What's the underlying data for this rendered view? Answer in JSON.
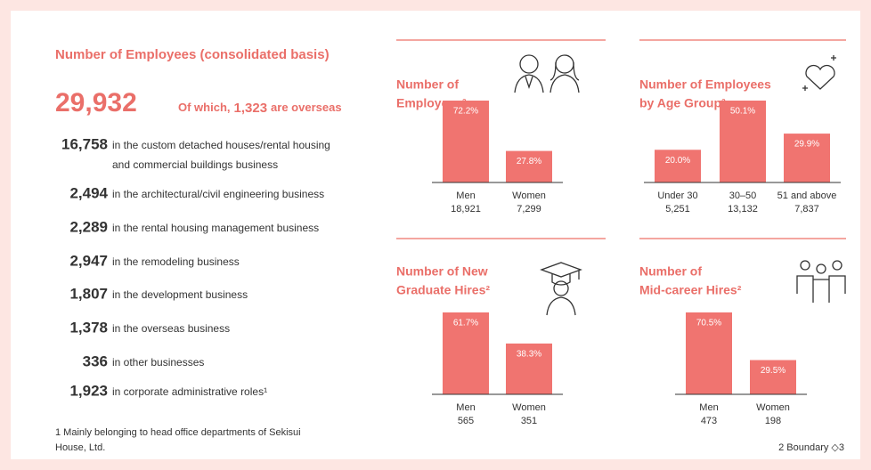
{
  "summary": {
    "title": "Number of Employees (consolidated basis)",
    "total": 29932,
    "total_label": "29,932",
    "overseas_prefix": "Of which,",
    "overseas": 1323,
    "overseas_label": "1,323",
    "overseas_suffix": "are overseas",
    "rows": [
      {
        "count": 16758,
        "label": "16,758",
        "text": [
          "in the custom detached houses/rental housing",
          "and commercial buildings business"
        ]
      },
      {
        "count": 2494,
        "label": "2,494",
        "text": [
          "in the architectural/civil engineering business"
        ]
      },
      {
        "count": 2289,
        "label": "2,289",
        "text": [
          "in the rental housing management business"
        ]
      },
      {
        "count": 2947,
        "label": "2,947",
        "text": [
          "in the remodeling business"
        ]
      },
      {
        "count": 1807,
        "label": "1,807",
        "text": [
          "in the development business"
        ]
      },
      {
        "count": 1378,
        "label": "1,378",
        "text": [
          "in the overseas business"
        ]
      },
      {
        "count": 336,
        "label": "336",
        "text": [
          "in other businesses"
        ]
      },
      {
        "count": 1923,
        "label": "1,923",
        "text": [
          "in corporate administrative roles¹"
        ]
      }
    ],
    "footnote": [
      "1 Mainly belonging to head office departments of Sekisui",
      "House, Ltd."
    ]
  },
  "footnote2": "2 Boundary ◇3",
  "chart_data": [
    {
      "type": "bar",
      "title": [
        "Number of",
        "Employees²"
      ],
      "color": "#f07470",
      "categories": [
        "Men",
        "Women"
      ],
      "values": [
        72.2,
        27.8
      ],
      "value_labels": [
        "72.2%",
        "27.8%"
      ],
      "counts": [
        18921,
        7299
      ],
      "count_labels": [
        "18,921",
        "7,299"
      ]
    },
    {
      "type": "bar",
      "title": [
        "Number of Employees",
        "by Age Group²"
      ],
      "color": "#f07470",
      "categories": [
        "Under 30",
        "30–50",
        "51 and above"
      ],
      "values": [
        20.0,
        50.1,
        29.9
      ],
      "value_labels": [
        "20.0%",
        "50.1%",
        "29.9%"
      ],
      "counts": [
        5251,
        13132,
        7837
      ],
      "count_labels": [
        "5,251",
        "13,132",
        "7,837"
      ]
    },
    {
      "type": "bar",
      "title": [
        "Number of New",
        "Graduate Hires²"
      ],
      "color": "#f07470",
      "categories": [
        "Men",
        "Women"
      ],
      "values": [
        61.7,
        38.3
      ],
      "value_labels": [
        "61.7%",
        "38.3%"
      ],
      "counts": [
        565,
        351
      ],
      "count_labels": [
        "565",
        "351"
      ]
    },
    {
      "type": "bar",
      "title": [
        "Number of",
        "Mid-career Hires²"
      ],
      "color": "#f07470",
      "categories": [
        "Men",
        "Women"
      ],
      "values": [
        70.5,
        29.5
      ],
      "value_labels": [
        "70.5%",
        "29.5%"
      ],
      "counts": [
        473,
        198
      ],
      "count_labels": [
        "473",
        "198"
      ]
    }
  ]
}
